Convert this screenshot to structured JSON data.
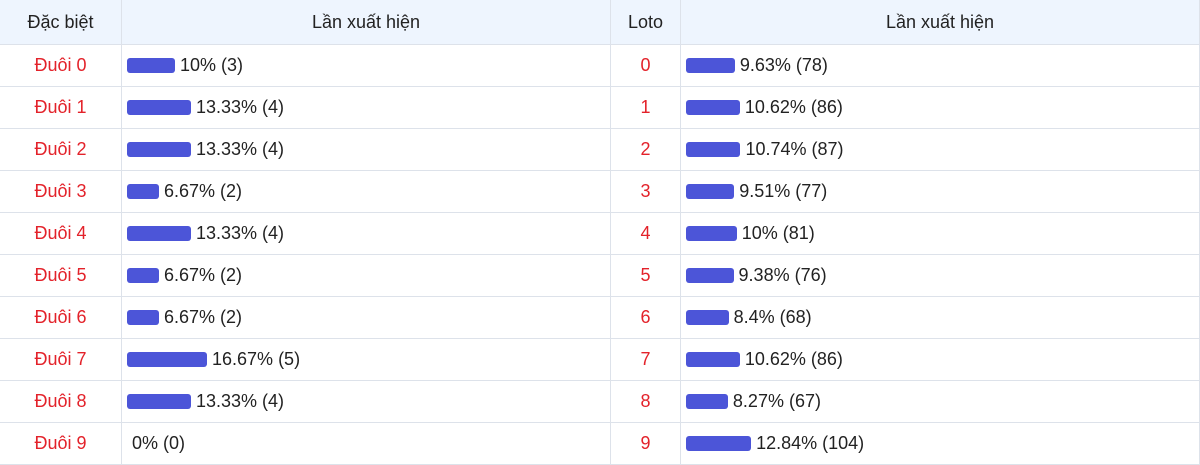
{
  "tables": [
    {
      "headers": [
        "Đặc biệt",
        "Lần xuất hiện"
      ],
      "rows": [
        {
          "label": "Đuôi 0",
          "value": 10,
          "value_label": "10% (3)"
        },
        {
          "label": "Đuôi 1",
          "value": 13.33,
          "value_label": "13.33% (4)"
        },
        {
          "label": "Đuôi 2",
          "value": 13.33,
          "value_label": "13.33% (4)"
        },
        {
          "label": "Đuôi 3",
          "value": 6.67,
          "value_label": "6.67% (2)"
        },
        {
          "label": "Đuôi 4",
          "value": 13.33,
          "value_label": "13.33% (4)"
        },
        {
          "label": "Đuôi 5",
          "value": 6.67,
          "value_label": "6.67% (2)"
        },
        {
          "label": "Đuôi 6",
          "value": 6.67,
          "value_label": "6.67% (2)"
        },
        {
          "label": "Đuôi 7",
          "value": 16.67,
          "value_label": "16.67% (5)"
        },
        {
          "label": "Đuôi 8",
          "value": 13.33,
          "value_label": "13.33% (4)"
        },
        {
          "label": "Đuôi 9",
          "value": 0,
          "value_label": "0% (0)"
        }
      ]
    },
    {
      "headers": [
        "Loto",
        "Lần xuất hiện"
      ],
      "rows": [
        {
          "label": "0",
          "value": 9.63,
          "value_label": "9.63% (78)"
        },
        {
          "label": "1",
          "value": 10.62,
          "value_label": "10.62% (86)"
        },
        {
          "label": "2",
          "value": 10.74,
          "value_label": "10.74% (87)"
        },
        {
          "label": "3",
          "value": 9.51,
          "value_label": "9.51% (77)"
        },
        {
          "label": "4",
          "value": 10,
          "value_label": "10% (81)"
        },
        {
          "label": "5",
          "value": 9.38,
          "value_label": "9.38% (76)"
        },
        {
          "label": "6",
          "value": 8.4,
          "value_label": "8.4% (68)"
        },
        {
          "label": "7",
          "value": 10.62,
          "value_label": "10.62% (86)"
        },
        {
          "label": "8",
          "value": 8.27,
          "value_label": "8.27% (67)"
        },
        {
          "label": "9",
          "value": 12.84,
          "value_label": "12.84% (104)"
        }
      ]
    }
  ]
}
